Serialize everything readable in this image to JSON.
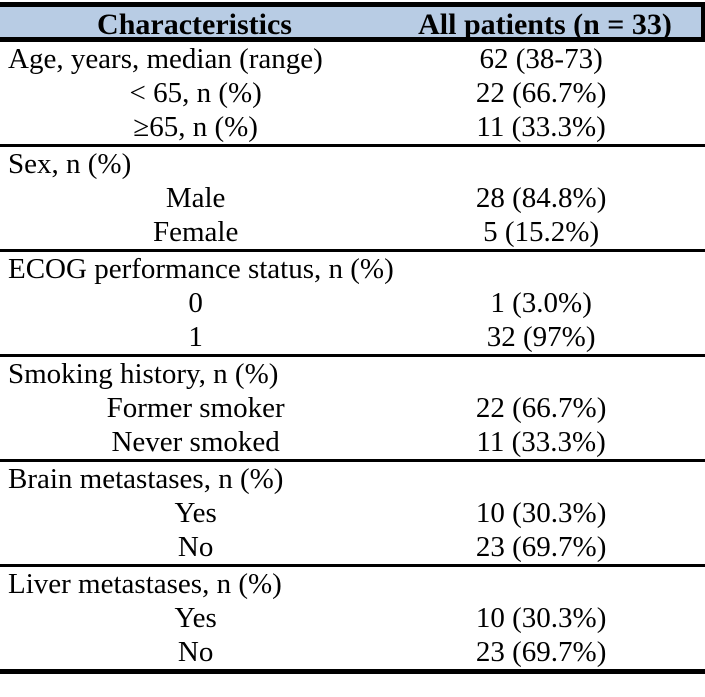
{
  "header": {
    "col1": "Characteristics",
    "col2": "All patients (n = 33)"
  },
  "sections": [
    {
      "rows": [
        {
          "label": "Age, years, median (range)",
          "value": "62 (38-73)",
          "indent": false
        },
        {
          "label": "< 65, n (%)",
          "value": "22 (66.7%)",
          "indent": true
        },
        {
          "label": "≥65, n (%)",
          "value": "11 (33.3%)",
          "indent": true
        }
      ]
    },
    {
      "rows": [
        {
          "label": "Sex, n (%)",
          "value": "",
          "indent": false
        },
        {
          "label": "Male",
          "value": "28 (84.8%)",
          "indent": true
        },
        {
          "label": "Female",
          "value": "5 (15.2%)",
          "indent": true
        }
      ]
    },
    {
      "rows": [
        {
          "label": "ECOG performance status, n (%)",
          "value": "",
          "indent": false
        },
        {
          "label": "0",
          "value": "1 (3.0%)",
          "indent": true
        },
        {
          "label": "1",
          "value": "32 (97%)",
          "indent": true
        }
      ]
    },
    {
      "rows": [
        {
          "label": "Smoking history, n (%)",
          "value": "",
          "indent": false
        },
        {
          "label": "Former smoker",
          "value": "22 (66.7%)",
          "indent": true
        },
        {
          "label": "Never smoked",
          "value": "11 (33.3%)",
          "indent": true
        }
      ]
    },
    {
      "rows": [
        {
          "label": "Brain metastases, n (%)",
          "value": "",
          "indent": false
        },
        {
          "label": "Yes",
          "value": "10 (30.3%)",
          "indent": true
        },
        {
          "label": "No",
          "value": "23 (69.7%)",
          "indent": true
        }
      ]
    },
    {
      "rows": [
        {
          "label": "Liver metastases, n (%)",
          "value": "",
          "indent": false
        },
        {
          "label": "Yes",
          "value": "10 (30.3%)",
          "indent": true
        },
        {
          "label": "No",
          "value": "23 (69.7%)",
          "indent": true
        }
      ]
    }
  ],
  "colors": {
    "page_bg": "#ffffff",
    "header_bg": "#b8cce4",
    "border": "#000000",
    "text": "#000000"
  }
}
